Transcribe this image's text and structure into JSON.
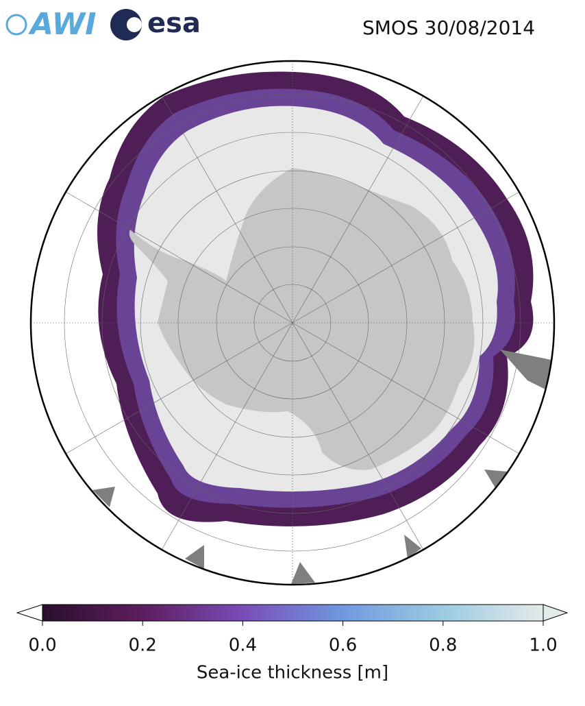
{
  "header": {
    "logos": [
      "AWI",
      "esa"
    ],
    "title": "SMOS 30/08/2014"
  },
  "colorbar": {
    "label": "Sea-ice thickness [m]",
    "lim": [
      0,
      1
    ],
    "ticks": [
      {
        "value": 0,
        "label": "0.0"
      },
      {
        "value": 0.2,
        "label": "0.2"
      },
      {
        "value": 0.4,
        "label": "0.4"
      },
      {
        "value": 0.6,
        "label": "0.6"
      },
      {
        "value": 0.8,
        "label": "0.8"
      },
      {
        "value": 1,
        "label": "1.0"
      }
    ]
  }
}
